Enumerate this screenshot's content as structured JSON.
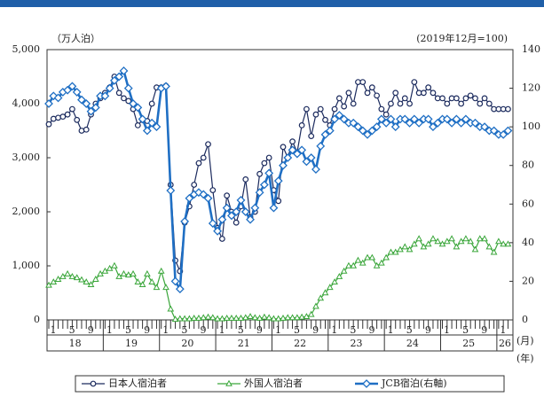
{
  "chart_data": {
    "type": "line",
    "unit_left": "（万人泊）",
    "unit_right": "(2019年12月=100)",
    "x_unit_month": "(月)",
    "x_unit_year": "(年)",
    "categories": [
      "1",
      null,
      null,
      null,
      "5",
      null,
      null,
      null,
      "9",
      null,
      null,
      null,
      "1",
      null,
      null,
      null,
      "5",
      null,
      null,
      null,
      "9",
      null,
      null,
      null,
      "1",
      null,
      null,
      null,
      "5",
      null,
      null,
      null,
      "9",
      null,
      null,
      null,
      "1",
      null,
      null,
      null,
      "5",
      null,
      null,
      null,
      "9",
      null,
      null,
      null,
      "1",
      null,
      null,
      null,
      "5",
      null,
      null,
      null,
      "9",
      null,
      null,
      null,
      "1",
      null,
      null,
      null,
      "5",
      null,
      null,
      null,
      "9",
      null,
      null,
      null,
      "1",
      null,
      null,
      null,
      "5",
      null,
      null,
      null,
      "9",
      null,
      null,
      null,
      "1",
      null,
      null,
      null,
      "5",
      null,
      null,
      null,
      "9",
      null,
      null,
      null,
      "1",
      null,
      null
    ],
    "years": [
      "18",
      "19",
      "20",
      "21",
      "22",
      "23",
      "24",
      "25",
      "26"
    ],
    "series": [
      {
        "name": "日本人宿泊者",
        "color": "#1c2b5e",
        "marker": "circle",
        "values": [
          3620,
          3720,
          3740,
          3760,
          3800,
          3900,
          3700,
          3500,
          3520,
          3800,
          4000,
          4100,
          4200,
          4300,
          4500,
          4200,
          4100,
          4050,
          3900,
          3600,
          3700,
          3680,
          4000,
          4300,
          4300,
          4330,
          2500,
          1100,
          900,
          1800,
          2100,
          2500,
          2900,
          3000,
          3250,
          2400,
          1700,
          1500,
          2300,
          2000,
          1800,
          2100,
          2600,
          1900,
          2000,
          2700,
          2900,
          3000,
          2400,
          2200,
          3200,
          3000,
          3300,
          3100,
          3600,
          3900,
          3400,
          3800,
          3900,
          3700,
          3600,
          3900,
          4100,
          3950,
          4200,
          4000,
          4400,
          4400,
          4200,
          4300,
          4150,
          3900,
          3800,
          4000,
          4200,
          4000,
          4100,
          4000,
          4400,
          4200,
          4200,
          4300,
          4200,
          4100,
          4100,
          4000,
          4100,
          4100,
          4000,
          4100,
          4150,
          4100,
          4000,
          4100,
          4000,
          3900,
          3900,
          3900,
          3900
        ]
      },
      {
        "name": "外国人宿泊者",
        "color": "#3aa63a",
        "marker": "triangle",
        "values": [
          640,
          700,
          750,
          800,
          850,
          800,
          780,
          740,
          700,
          650,
          750,
          850,
          900,
          950,
          1000,
          800,
          850,
          830,
          850,
          700,
          650,
          850,
          700,
          600,
          900,
          600,
          200,
          10,
          20,
          20,
          20,
          30,
          30,
          40,
          50,
          40,
          20,
          20,
          30,
          30,
          30,
          30,
          40,
          60,
          40,
          30,
          50,
          40,
          20,
          20,
          30,
          40,
          40,
          40,
          50,
          60,
          100,
          250,
          400,
          500,
          600,
          700,
          800,
          900,
          1000,
          1000,
          1100,
          1050,
          1150,
          1150,
          1000,
          1050,
          1150,
          1250,
          1250,
          1300,
          1350,
          1300,
          1400,
          1500,
          1350,
          1400,
          1500,
          1450,
          1400,
          1450,
          1500,
          1350,
          1450,
          1500,
          1450,
          1300,
          1500,
          1500,
          1350,
          1250,
          1450,
          1400,
          1400
        ]
      },
      {
        "name": "JCB宿泊(右軸)",
        "color": "#1f6fc4",
        "marker": "diamond",
        "axis": "y2",
        "values": [
          112,
          116,
          115,
          118,
          119,
          121,
          118,
          114,
          112,
          108,
          110,
          116,
          116,
          120,
          124,
          126,
          129,
          120,
          112,
          110,
          104,
          98,
          102,
          100,
          120,
          121,
          67,
          20,
          16,
          51,
          63,
          65,
          66,
          65,
          63,
          50,
          46,
          52,
          58,
          54,
          56,
          62,
          56,
          52,
          58,
          66,
          70,
          76,
          58,
          72,
          80,
          84,
          88,
          86,
          88,
          82,
          84,
          78,
          90,
          96,
          98,
          104,
          106,
          104,
          102,
          102,
          100,
          98,
          96,
          98,
          100,
          104,
          102,
          104,
          100,
          104,
          104,
          102,
          104,
          102,
          104,
          104,
          100,
          102,
          104,
          104,
          102,
          104,
          102,
          104,
          102,
          102,
          100,
          100,
          98,
          98,
          96,
          96,
          98
        ]
      }
    ],
    "ylim": [
      0,
      5000
    ],
    "yticks": [
      0,
      {
        "value": 1000,
        "label": "1,000"
      },
      {
        "value": 2000,
        "label": "2,000"
      },
      {
        "value": 3000,
        "label": "3,000"
      },
      {
        "value": 4000,
        "label": "4,000"
      },
      {
        "value": 5000,
        "label": "5,000"
      }
    ],
    "y2lim": [
      0,
      140
    ],
    "y2ticks": [
      0,
      20,
      40,
      60,
      80,
      100,
      120,
      140
    ],
    "grid": false,
    "legend": "bottom"
  }
}
